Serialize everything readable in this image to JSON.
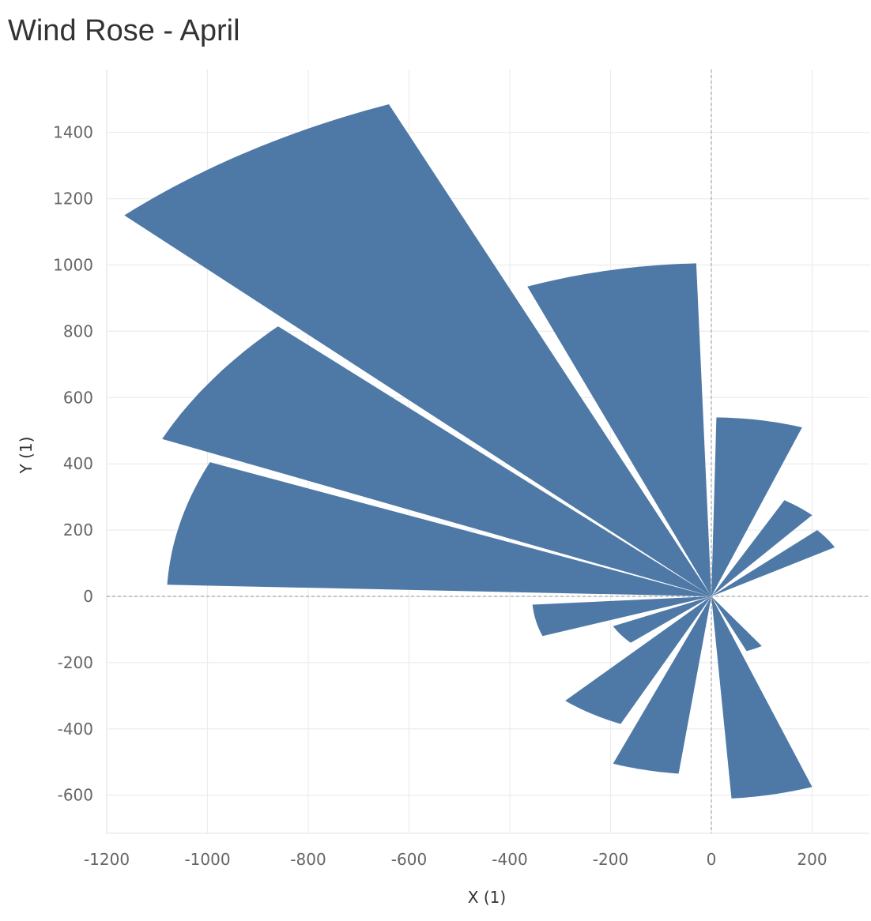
{
  "chart_data": {
    "type": "wind-rose (polygon sectors on x/y plane)",
    "title": "Wind Rose - April",
    "xlabel": "X (1)",
    "ylabel": "Y (1)",
    "xlim": [
      -1250,
      300
    ],
    "ylim": [
      -700,
      1570
    ],
    "x_ticks": [
      -1200,
      -1000,
      -800,
      -600,
      -400,
      -200,
      0,
      200
    ],
    "y_ticks": [
      1400,
      1200,
      1000,
      800,
      600,
      400,
      200,
      0,
      -200,
      -400,
      -600
    ],
    "grid": true,
    "zero_lines": "dashed",
    "color": "#4e79a7",
    "sectors": [
      {
        "edge1": [
          -30,
          1005
        ],
        "edge2": [
          -365,
          935
        ]
      },
      {
        "edge1": [
          -640,
          1485
        ],
        "edge2": [
          -1165,
          1150
        ]
      },
      {
        "edge1": [
          -860,
          815
        ],
        "edge2": [
          -1090,
          475
        ]
      },
      {
        "edge1": [
          -995,
          405
        ],
        "edge2": [
          -1080,
          35
        ]
      },
      {
        "edge1": [
          -355,
          -25
        ],
        "edge2": [
          -335,
          -120
        ]
      },
      {
        "edge1": [
          -195,
          -90
        ],
        "edge2": [
          -160,
          -140
        ]
      },
      {
        "edge1": [
          -290,
          -315
        ],
        "edge2": [
          -180,
          -385
        ]
      },
      {
        "edge1": [
          -195,
          -505
        ],
        "edge2": [
          -65,
          -535
        ]
      },
      {
        "edge1": [
          40,
          -610
        ],
        "edge2": [
          200,
          -575
        ]
      },
      {
        "edge1": [
          70,
          -165
        ],
        "edge2": [
          100,
          -150
        ]
      },
      {
        "edge1": [
          210,
          200
        ],
        "edge2": [
          245,
          148
        ]
      },
      {
        "edge1": [
          145,
          290
        ],
        "edge2": [
          200,
          245
        ]
      },
      {
        "edge1": [
          10,
          540
        ],
        "edge2": [
          180,
          510
        ]
      }
    ]
  }
}
